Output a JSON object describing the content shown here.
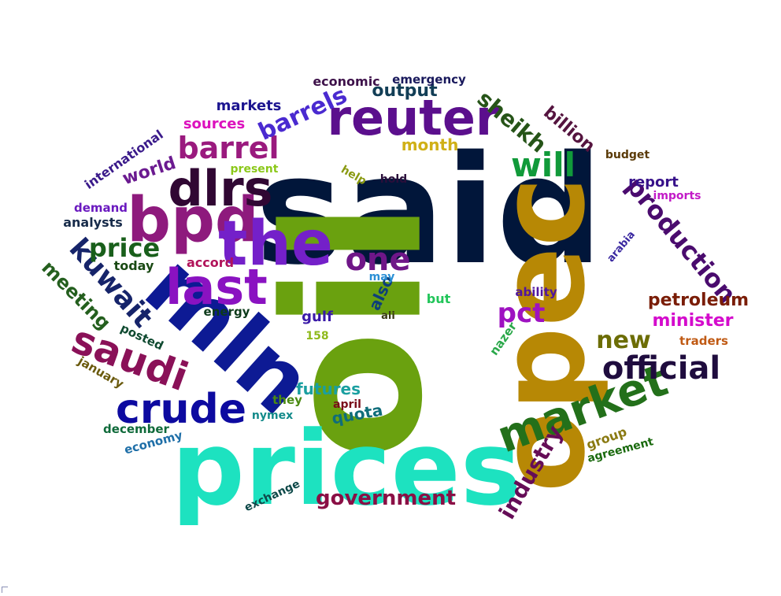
{
  "words": [
    {
      "text": "said",
      "color": "#01163a"
    },
    {
      "text": "oil",
      "color": "#6aa10f"
    },
    {
      "text": "prices",
      "color": "#1de2c0"
    },
    {
      "text": "opec",
      "color": "#b78805"
    },
    {
      "text": "mln",
      "color": "#0d1a94"
    },
    {
      "text": "bpd",
      "color": "#8e1a7d"
    },
    {
      "text": "the",
      "color": "#7420c9"
    },
    {
      "text": "dlrs",
      "color": "#300733"
    },
    {
      "text": "reuter",
      "color": "#5b0f8d"
    },
    {
      "text": "last",
      "color": "#8a12c1"
    },
    {
      "text": "market",
      "color": "#23701a"
    },
    {
      "text": "crude",
      "color": "#0d0aa0"
    },
    {
      "text": "saudi",
      "color": "#8a1158"
    },
    {
      "text": "barrel",
      "color": "#9a1a7e"
    },
    {
      "text": "will",
      "color": "#119a3a"
    },
    {
      "text": "one",
      "color": "#6f1688"
    },
    {
      "text": "official",
      "color": "#1f0c3e"
    },
    {
      "text": "kuwait",
      "color": "#16246a"
    },
    {
      "text": "production",
      "color": "#4a0b6e"
    },
    {
      "text": "price",
      "color": "#195f1b"
    },
    {
      "text": "new",
      "color": "#6c6d05"
    },
    {
      "text": "barrels",
      "color": "#4a2ad0"
    },
    {
      "text": "pct",
      "color": "#9e12c1"
    },
    {
      "text": "sheikh",
      "color": "#265418"
    },
    {
      "text": "industry",
      "color": "#650d57"
    },
    {
      "text": "government",
      "color": "#8a0f45"
    },
    {
      "text": "meeting",
      "color": "#245f1e"
    },
    {
      "text": "billion",
      "color": "#55143f"
    },
    {
      "text": "petroleum",
      "color": "#7a1d07"
    },
    {
      "text": "minister",
      "color": "#d40bcc"
    },
    {
      "text": "output",
      "color": "#123e56"
    },
    {
      "text": "sources",
      "color": "#dc12bd"
    },
    {
      "text": "world",
      "color": "#6b1a90"
    },
    {
      "text": "month",
      "color": "#d0b017"
    },
    {
      "text": "futures",
      "color": "#1a9fa0"
    },
    {
      "text": "quota",
      "color": "#0f6d7a"
    },
    {
      "text": "also",
      "color": "#0d3f7a"
    },
    {
      "text": "report",
      "color": "#37118a"
    },
    {
      "text": "markets",
      "color": "#1c1590"
    },
    {
      "text": "economic",
      "color": "#3e124a"
    },
    {
      "text": "emergency",
      "color": "#19195c"
    },
    {
      "text": "international",
      "color": "#3a1a8a"
    },
    {
      "text": "demand",
      "color": "#6a19bf"
    },
    {
      "text": "analysts",
      "color": "#172b4a"
    },
    {
      "text": "accord",
      "color": "#b1135a"
    },
    {
      "text": "today",
      "color": "#1a4a14"
    },
    {
      "text": "energy",
      "color": "#0c3a1a"
    },
    {
      "text": "posted",
      "color": "#0f4a30"
    },
    {
      "text": "january",
      "color": "#6a5a0d"
    },
    {
      "text": "gulf",
      "color": "#3a1aa8"
    },
    {
      "text": "158",
      "color": "#8fba1c"
    },
    {
      "text": "may",
      "color": "#2a8fd5"
    },
    {
      "text": "but",
      "color": "#22c55a"
    },
    {
      "text": "ali",
      "color": "#3a3a15"
    },
    {
      "text": "ability",
      "color": "#5016a0"
    },
    {
      "text": "nazer",
      "color": "#2aa84a"
    },
    {
      "text": "traders",
      "color": "#c05a14"
    },
    {
      "text": "group",
      "color": "#8a7a12"
    },
    {
      "text": "agreement",
      "color": "#1a6a0e"
    },
    {
      "text": "budget",
      "color": "#5a3a07"
    },
    {
      "text": "imports",
      "color": "#c21ac7"
    },
    {
      "text": "arabia",
      "color": "#3a28a0"
    },
    {
      "text": "present",
      "color": "#8bc81a"
    },
    {
      "text": "help",
      "color": "#8a9a12"
    },
    {
      "text": "hold",
      "color": "#2a0e3a"
    },
    {
      "text": "they",
      "color": "#4a8a12"
    },
    {
      "text": "april",
      "color": "#7a0d1a"
    },
    {
      "text": "nymex",
      "color": "#138a8a"
    },
    {
      "text": "december",
      "color": "#0f6a3a"
    },
    {
      "text": "economy",
      "color": "#1f6fa8"
    },
    {
      "text": "exchange",
      "color": "#0f4a4a"
    }
  ]
}
